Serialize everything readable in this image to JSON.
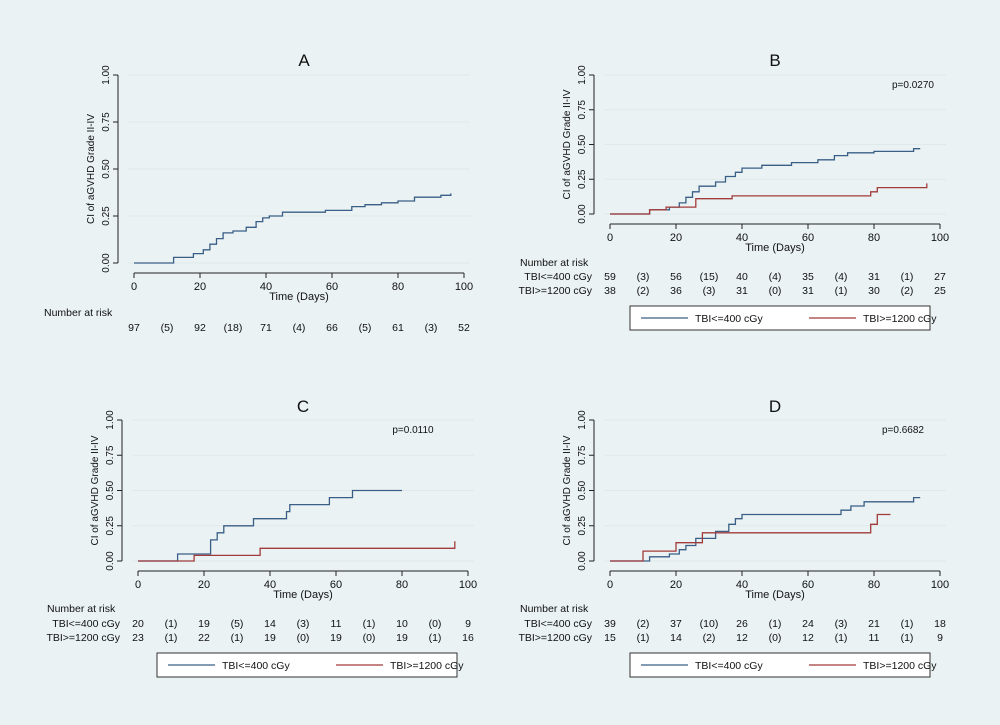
{
  "colors": {
    "background": "#eaf2f3",
    "grid": "#dfe9ea",
    "axis": "#222222",
    "series1": "#3a5f86",
    "series2": "#a13b3b"
  },
  "chart_data": [
    {
      "id": "A",
      "type": "line",
      "title": "A",
      "xlabel": "Time (Days)",
      "ylabel": "CI of aGVHD Grade II-IV",
      "xlim": [
        0,
        100
      ],
      "ylim": [
        0,
        1
      ],
      "xticks": [
        "0",
        "20",
        "40",
        "60",
        "80",
        "100"
      ],
      "yticks": [
        "0.00",
        "0.25",
        "0.50",
        "0.75",
        "1.00"
      ],
      "grid": true,
      "pvalue": "",
      "series": [
        {
          "name": "",
          "step": [
            [
              0,
              0
            ],
            [
              12,
              0
            ],
            [
              12,
              0.03
            ],
            [
              18,
              0.03
            ],
            [
              18,
              0.05
            ],
            [
              21,
              0.05
            ],
            [
              21,
              0.07
            ],
            [
              23,
              0.07
            ],
            [
              23,
              0.1
            ],
            [
              25,
              0.1
            ],
            [
              25,
              0.13
            ],
            [
              27,
              0.13
            ],
            [
              27,
              0.16
            ],
            [
              30,
              0.16
            ],
            [
              30,
              0.17
            ],
            [
              34,
              0.17
            ],
            [
              34,
              0.19
            ],
            [
              37,
              0.19
            ],
            [
              37,
              0.22
            ],
            [
              39,
              0.22
            ],
            [
              39,
              0.24
            ],
            [
              41,
              0.24
            ],
            [
              41,
              0.25
            ],
            [
              45,
              0.25
            ],
            [
              45,
              0.27
            ],
            [
              58,
              0.27
            ],
            [
              58,
              0.28
            ],
            [
              66,
              0.28
            ],
            [
              66,
              0.3
            ],
            [
              70,
              0.3
            ],
            [
              70,
              0.31
            ],
            [
              75,
              0.31
            ],
            [
              75,
              0.32
            ],
            [
              80,
              0.32
            ],
            [
              80,
              0.33
            ],
            [
              85,
              0.33
            ],
            [
              85,
              0.35
            ],
            [
              93,
              0.35
            ],
            [
              93,
              0.36
            ],
            [
              96,
              0.36
            ],
            [
              96,
              0.37
            ]
          ]
        }
      ],
      "risk_table": {
        "title": "Number at risk",
        "rows": [
          {
            "label": "",
            "values": [
              "97",
              "(5)",
              "92",
              "(18)",
              "71",
              "(4)",
              "66",
              "(5)",
              "61",
              "(3)",
              "52"
            ]
          }
        ]
      },
      "legend": []
    },
    {
      "id": "B",
      "type": "line",
      "title": "B",
      "xlabel": "Time (Days)",
      "ylabel": "CI of aGVHD Grade II-IV",
      "xlim": [
        0,
        100
      ],
      "ylim": [
        0,
        1
      ],
      "xticks": [
        "0",
        "20",
        "40",
        "60",
        "80",
        "100"
      ],
      "yticks": [
        "0.00",
        "0.25",
        "0.50",
        "0.75",
        "1.00"
      ],
      "grid": true,
      "pvalue": "p=0.0270",
      "series": [
        {
          "name": "TBI<=400 cGy",
          "step": [
            [
              0,
              0
            ],
            [
              12,
              0
            ],
            [
              12,
              0.03
            ],
            [
              18,
              0.03
            ],
            [
              18,
              0.05
            ],
            [
              21,
              0.05
            ],
            [
              21,
              0.08
            ],
            [
              23,
              0.08
            ],
            [
              23,
              0.12
            ],
            [
              25,
              0.12
            ],
            [
              25,
              0.16
            ],
            [
              27,
              0.16
            ],
            [
              27,
              0.2
            ],
            [
              32,
              0.2
            ],
            [
              32,
              0.23
            ],
            [
              35,
              0.23
            ],
            [
              35,
              0.27
            ],
            [
              38,
              0.27
            ],
            [
              38,
              0.3
            ],
            [
              40,
              0.3
            ],
            [
              40,
              0.33
            ],
            [
              46,
              0.33
            ],
            [
              46,
              0.35
            ],
            [
              55,
              0.35
            ],
            [
              55,
              0.37
            ],
            [
              63,
              0.37
            ],
            [
              63,
              0.39
            ],
            [
              68,
              0.39
            ],
            [
              68,
              0.42
            ],
            [
              72,
              0.42
            ],
            [
              72,
              0.44
            ],
            [
              80,
              0.44
            ],
            [
              80,
              0.45
            ],
            [
              92,
              0.45
            ],
            [
              92,
              0.47
            ],
            [
              94,
              0.47
            ]
          ]
        },
        {
          "name": "TBI>=1200 cGy",
          "step": [
            [
              0,
              0
            ],
            [
              12,
              0
            ],
            [
              12,
              0.03
            ],
            [
              17,
              0.03
            ],
            [
              17,
              0.05
            ],
            [
              26,
              0.05
            ],
            [
              26,
              0.11
            ],
            [
              37,
              0.11
            ],
            [
              37,
              0.13
            ],
            [
              79,
              0.13
            ],
            [
              79,
              0.16
            ],
            [
              81,
              0.16
            ],
            [
              81,
              0.19
            ],
            [
              96,
              0.19
            ],
            [
              96,
              0.22
            ]
          ]
        }
      ],
      "risk_table": {
        "title": "Number at risk",
        "rows": [
          {
            "label": "TBI<=400 cGy",
            "values": [
              "59",
              "(3)",
              "56",
              "(15)",
              "40",
              "(4)",
              "35",
              "(4)",
              "31",
              "(1)",
              "27"
            ]
          },
          {
            "label": "TBI>=1200 cGy",
            "values": [
              "38",
              "(2)",
              "36",
              "(3)",
              "31",
              "(0)",
              "31",
              "(1)",
              "30",
              "(2)",
              "25"
            ]
          }
        ]
      },
      "legend": [
        "TBI<=400 cGy",
        "TBI>=1200 cGy"
      ]
    },
    {
      "id": "C",
      "type": "line",
      "title": "C",
      "xlabel": "Time (Days)",
      "ylabel": "CI of aGVHD Grade II-IV",
      "xlim": [
        0,
        100
      ],
      "ylim": [
        0,
        1
      ],
      "xticks": [
        "0",
        "20",
        "40",
        "60",
        "80",
        "100"
      ],
      "yticks": [
        "0.00",
        "0.25",
        "0.50",
        "0.75",
        "1.00"
      ],
      "grid": true,
      "pvalue": "p=0.0110",
      "series": [
        {
          "name": "TBI<=400 cGy",
          "step": [
            [
              0,
              0
            ],
            [
              12,
              0
            ],
            [
              12,
              0.05
            ],
            [
              22,
              0.05
            ],
            [
              22,
              0.15
            ],
            [
              24,
              0.15
            ],
            [
              24,
              0.2
            ],
            [
              26,
              0.2
            ],
            [
              26,
              0.25
            ],
            [
              35,
              0.25
            ],
            [
              35,
              0.3
            ],
            [
              45,
              0.3
            ],
            [
              45,
              0.35
            ],
            [
              46,
              0.35
            ],
            [
              46,
              0.4
            ],
            [
              58,
              0.4
            ],
            [
              58,
              0.45
            ],
            [
              65,
              0.45
            ],
            [
              65,
              0.5
            ],
            [
              80,
              0.5
            ]
          ]
        },
        {
          "name": "TBI>=1200 cGy",
          "step": [
            [
              0,
              0
            ],
            [
              17,
              0
            ],
            [
              17,
              0.04
            ],
            [
              37,
              0.04
            ],
            [
              37,
              0.09
            ],
            [
              96,
              0.09
            ],
            [
              96,
              0.14
            ]
          ]
        }
      ],
      "risk_table": {
        "title": "Number at risk",
        "rows": [
          {
            "label": "TBI<=400 cGy",
            "values": [
              "20",
              "(1)",
              "19",
              "(5)",
              "14",
              "(3)",
              "11",
              "(1)",
              "10",
              "(0)",
              "9"
            ]
          },
          {
            "label": "TBI>=1200 cGy",
            "values": [
              "23",
              "(1)",
              "22",
              "(1)",
              "19",
              "(0)",
              "19",
              "(0)",
              "19",
              "(1)",
              "16"
            ]
          }
        ]
      },
      "legend": [
        "TBI<=400 cGy",
        "TBI>=1200 cGy"
      ]
    },
    {
      "id": "D",
      "type": "line",
      "title": "D",
      "xlabel": "Time (Days)",
      "ylabel": "CI of aGVHD Grade II-IV",
      "xlim": [
        0,
        100
      ],
      "ylim": [
        0,
        1
      ],
      "xticks": [
        "0",
        "20",
        "40",
        "60",
        "80",
        "100"
      ],
      "yticks": [
        "0.00",
        "0.25",
        "0.50",
        "0.75",
        "1.00"
      ],
      "grid": true,
      "pvalue": "p=0.6682",
      "series": [
        {
          "name": "TBI<=400 cGy",
          "step": [
            [
              0,
              0
            ],
            [
              12,
              0
            ],
            [
              12,
              0.03
            ],
            [
              18,
              0.03
            ],
            [
              18,
              0.05
            ],
            [
              21,
              0.05
            ],
            [
              21,
              0.08
            ],
            [
              23,
              0.08
            ],
            [
              23,
              0.11
            ],
            [
              26,
              0.11
            ],
            [
              26,
              0.16
            ],
            [
              32,
              0.16
            ],
            [
              32,
              0.21
            ],
            [
              36,
              0.21
            ],
            [
              36,
              0.26
            ],
            [
              38,
              0.26
            ],
            [
              38,
              0.3
            ],
            [
              40,
              0.3
            ],
            [
              40,
              0.33
            ],
            [
              70,
              0.33
            ],
            [
              70,
              0.36
            ],
            [
              73,
              0.36
            ],
            [
              73,
              0.39
            ],
            [
              77,
              0.39
            ],
            [
              77,
              0.42
            ],
            [
              92,
              0.42
            ],
            [
              92,
              0.45
            ],
            [
              94,
              0.45
            ]
          ]
        },
        {
          "name": "TBI>=1200 cGy",
          "step": [
            [
              0,
              0
            ],
            [
              10,
              0
            ],
            [
              10,
              0.07
            ],
            [
              20,
              0.07
            ],
            [
              20,
              0.13
            ],
            [
              28,
              0.13
            ],
            [
              28,
              0.2
            ],
            [
              79,
              0.2
            ],
            [
              79,
              0.26
            ],
            [
              81,
              0.26
            ],
            [
              81,
              0.33
            ],
            [
              85,
              0.33
            ]
          ]
        }
      ],
      "risk_table": {
        "title": "Number at risk",
        "rows": [
          {
            "label": "TBI<=400 cGy",
            "values": [
              "39",
              "(2)",
              "37",
              "(10)",
              "26",
              "(1)",
              "24",
              "(3)",
              "21",
              "(1)",
              "18"
            ]
          },
          {
            "label": "TBI>=1200 cGy",
            "values": [
              "15",
              "(1)",
              "14",
              "(2)",
              "12",
              "(0)",
              "12",
              "(1)",
              "11",
              "(1)",
              "9"
            ]
          }
        ]
      },
      "legend": [
        "TBI<=400 cGy",
        "TBI>=1200 cGy"
      ]
    }
  ]
}
